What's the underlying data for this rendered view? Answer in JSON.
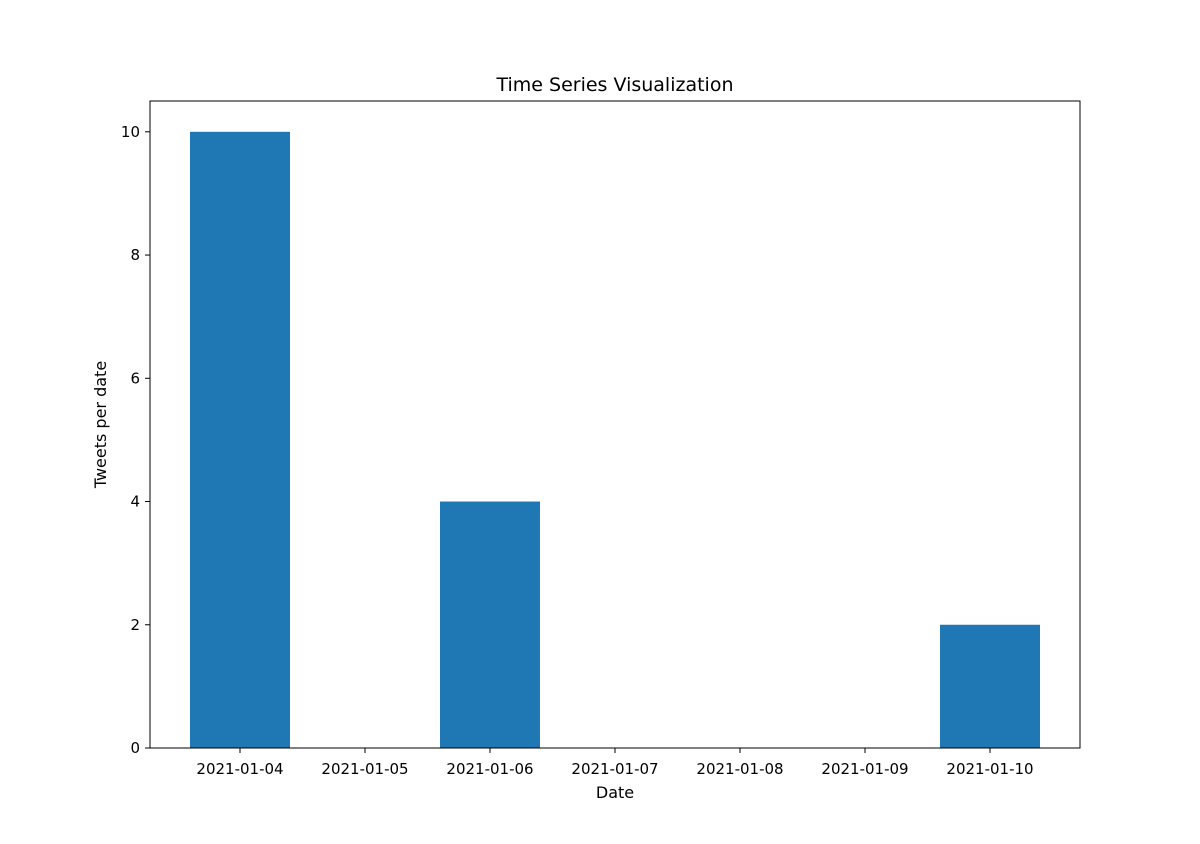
{
  "chart_data": {
    "type": "bar",
    "title": "Time Series Visualization",
    "xlabel": "Date",
    "ylabel": "Tweets per date",
    "categories": [
      "2021-01-04",
      "2021-01-05",
      "2021-01-06",
      "2021-01-07",
      "2021-01-08",
      "2021-01-09",
      "2021-01-10"
    ],
    "values": [
      10,
      0,
      4,
      0,
      0,
      0,
      2
    ],
    "ylim": [
      0,
      10.5
    ],
    "yticks": [
      0,
      2,
      4,
      6,
      8,
      10
    ],
    "grid": false,
    "legend": "none",
    "bar_color": "#1f77b4"
  }
}
